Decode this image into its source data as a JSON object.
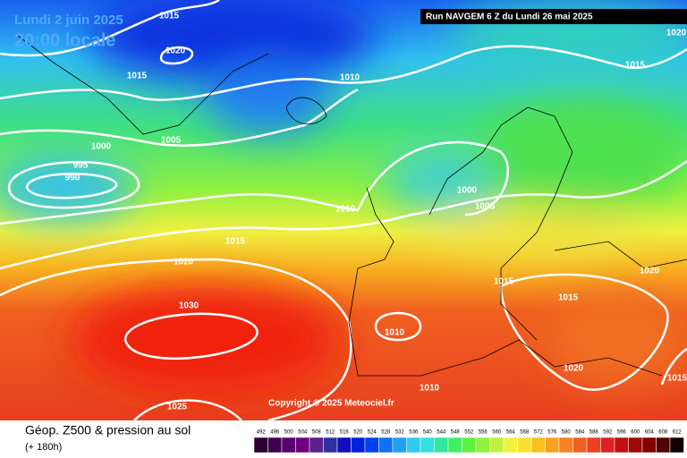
{
  "title": "Lundi 2 juin 2025",
  "subtitle": "20:00 locale",
  "run": "Run NAVGEM 6 Z du Lundi 26 mai 2025",
  "copyright": "Copyright © 2025 Meteociel.fr",
  "legend": {
    "title": "Géop. Z500 & pression au sol",
    "lead": "(+ 180h)",
    "scale": [
      492,
      496,
      500,
      504,
      508,
      512,
      516,
      520,
      524,
      528,
      532,
      536,
      540,
      544,
      548,
      552,
      556,
      560,
      564,
      568,
      572,
      576,
      580,
      584,
      588,
      592,
      596,
      600,
      604,
      608,
      612
    ],
    "colors": [
      "#2a0030",
      "#400050",
      "#5a0070",
      "#700080",
      "#5a2090",
      "#3030a0",
      "#1010c0",
      "#0020e0",
      "#0040f0",
      "#1070f0",
      "#20a0f0",
      "#30c8f0",
      "#30e0e0",
      "#30e8a0",
      "#40f060",
      "#60f040",
      "#90f040",
      "#c0f040",
      "#f0f040",
      "#f8e030",
      "#f8c020",
      "#f8a020",
      "#f88020",
      "#f06020",
      "#f04020",
      "#e02020",
      "#c01010",
      "#a00808",
      "#800000",
      "#500000",
      "#100000"
    ]
  },
  "isobars": [
    1015,
    1020,
    1015,
    1010,
    1005,
    1000,
    995,
    990,
    1010,
    1000,
    1005,
    1015,
    1020,
    1030,
    1010,
    1015,
    1015,
    1020,
    1015,
    1020,
    1020,
    1010,
    1025,
    1015
  ]
}
